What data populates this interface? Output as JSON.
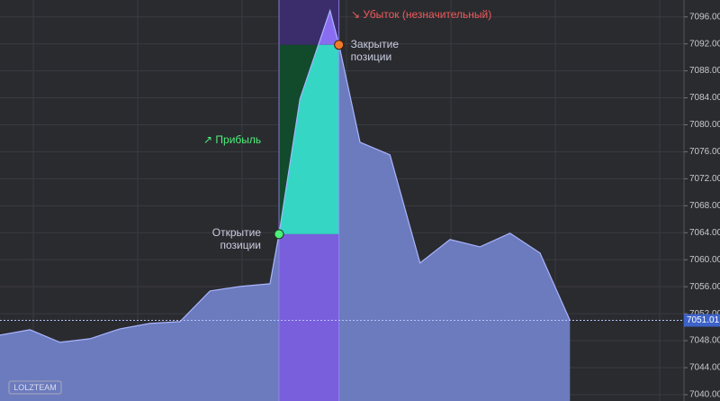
{
  "chart_data": {
    "type": "area",
    "x": [
      0,
      1,
      2,
      3,
      4,
      5,
      6,
      7,
      8,
      9,
      9.3,
      10,
      11,
      11.3,
      12,
      13,
      14,
      15,
      16,
      17,
      18,
      19
    ],
    "series": [
      {
        "color": "#a9b4ff",
        "values": [
          7048.83,
          7049.63,
          7047.76,
          7048.29,
          7049.76,
          7050.56,
          7050.83,
          7055.37,
          7056.04,
          7056.44,
          7063.79,
          7083.84,
          7096.94,
          7091.86,
          7077.42,
          7075.55,
          7059.52,
          7062.99,
          7061.92,
          7063.93,
          7060.99,
          7051.01
        ]
      }
    ],
    "xlim": [
      0,
      22.8
    ],
    "ylim": [
      7039.06,
      7098.5
    ],
    "yticks": [
      {
        "value": 7040,
        "label": "7040.00"
      },
      {
        "value": 7044,
        "label": "7044.00"
      },
      {
        "value": 7048,
        "label": "7048.00"
      },
      {
        "value": 7052,
        "label": "7052.00"
      },
      {
        "value": 7056,
        "label": "7056.00"
      },
      {
        "value": 7060,
        "label": "7060.00"
      },
      {
        "value": 7064,
        "label": "7064.00"
      },
      {
        "value": 7068,
        "label": "7068.00"
      },
      {
        "value": 7072,
        "label": "7072.00"
      },
      {
        "value": 7076,
        "label": "7076.00"
      },
      {
        "value": 7080,
        "label": "7080.00"
      },
      {
        "value": 7084,
        "label": "7084.00"
      },
      {
        "value": 7088,
        "label": "7088.00"
      },
      {
        "value": 7092,
        "label": "7092.00"
      },
      {
        "value": 7096,
        "label": "7096.00"
      }
    ],
    "grid": true,
    "current_price": 7051.01,
    "open": {
      "x": 9.3,
      "price": 7063.79,
      "label": [
        "Открытие",
        "позиции"
      ]
    },
    "close": {
      "x": 11.3,
      "price": 7091.86,
      "label": [
        "Закрытие",
        "позиции"
      ]
    },
    "profit_label": "↗ Прибыль",
    "loss_label": "↘ Убыток (незначительный)",
    "watermark": "LOLZTEAM"
  }
}
